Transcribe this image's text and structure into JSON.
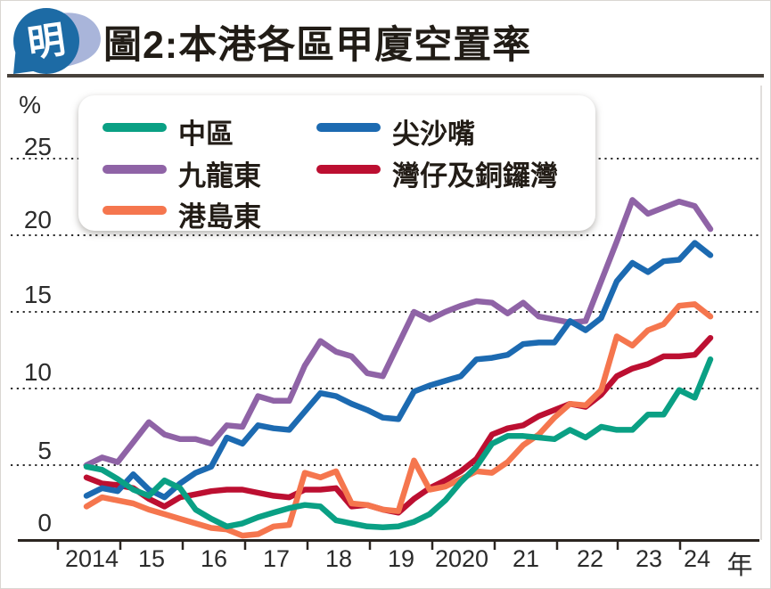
{
  "header": {
    "title": "圖2:本港各區甲廈空置率",
    "logo_char": "明"
  },
  "axis": {
    "y_unit_label": "%",
    "y_tick_labels": [
      "25",
      "20",
      "15",
      "10",
      "5",
      "0"
    ],
    "x_tick_labels": [
      "2014",
      "15",
      "16",
      "17",
      "18",
      "19",
      "2020",
      "21",
      "22",
      "23",
      "24"
    ],
    "x_axis_suffix": "年"
  },
  "chart_data": {
    "type": "line",
    "title": "本港各區甲廈空置率",
    "unit": "%",
    "frequency": "quarterly",
    "x_start": "2014Q2",
    "x_end": "2024Q2",
    "ylim": [
      0,
      27
    ],
    "y_gridlines": [
      5,
      10,
      15,
      20,
      25
    ],
    "grid_style": "dotted",
    "legend_position": "top-left",
    "x_quarters": [
      "2014Q2",
      "2014Q3",
      "2014Q4",
      "2015Q1",
      "2015Q2",
      "2015Q3",
      "2015Q4",
      "2016Q1",
      "2016Q2",
      "2016Q3",
      "2016Q4",
      "2017Q1",
      "2017Q2",
      "2017Q3",
      "2017Q4",
      "2018Q1",
      "2018Q2",
      "2018Q3",
      "2018Q4",
      "2019Q1",
      "2019Q2",
      "2019Q3",
      "2019Q4",
      "2020Q1",
      "2020Q2",
      "2020Q3",
      "2020Q4",
      "2021Q1",
      "2021Q2",
      "2021Q3",
      "2021Q4",
      "2022Q1",
      "2022Q2",
      "2022Q3",
      "2022Q4",
      "2023Q1",
      "2023Q2",
      "2023Q3",
      "2023Q4",
      "2024Q1",
      "2024Q2"
    ],
    "series": [
      {
        "name": "中區",
        "color": "#0aa084",
        "values": [
          4.9,
          4.7,
          4.1,
          3.4,
          3.0,
          4.0,
          3.5,
          2.1,
          1.5,
          1.0,
          1.2,
          1.6,
          1.9,
          2.2,
          2.4,
          2.3,
          1.4,
          1.2,
          1.0,
          0.95,
          1.0,
          1.3,
          1.8,
          2.7,
          3.9,
          4.9,
          6.4,
          6.9,
          6.9,
          6.8,
          6.7,
          7.3,
          6.8,
          7.5,
          7.3,
          7.3,
          8.3,
          8.3,
          9.9,
          9.4,
          11.9
        ]
      },
      {
        "name": "九龍東",
        "color": "#8f63a6",
        "values": [
          5.0,
          5.5,
          5.2,
          6.5,
          7.8,
          7.0,
          6.7,
          6.7,
          6.4,
          7.6,
          7.5,
          9.5,
          9.2,
          9.2,
          11.5,
          13.1,
          12.4,
          12.1,
          11.0,
          10.8,
          12.9,
          15.0,
          14.5,
          15.0,
          15.4,
          15.7,
          15.6,
          14.9,
          15.6,
          14.7,
          14.5,
          14.3,
          14.4,
          17.0,
          19.6,
          22.3,
          21.4,
          21.8,
          22.2,
          21.9,
          20.4
        ]
      },
      {
        "name": "港島東",
        "color": "#f5764e",
        "values": [
          2.3,
          2.9,
          2.7,
          2.5,
          2.1,
          1.8,
          1.5,
          1.2,
          0.9,
          0.8,
          0.4,
          0.5,
          1.0,
          1.1,
          4.5,
          4.2,
          4.6,
          2.5,
          2.4,
          2.1,
          2.0,
          5.3,
          3.4,
          3.6,
          4.1,
          4.6,
          4.5,
          5.2,
          6.3,
          7.0,
          8.1,
          9.0,
          8.9,
          9.9,
          13.4,
          12.8,
          13.8,
          14.2,
          15.4,
          15.5,
          14.7
        ]
      },
      {
        "name": "尖沙嘴",
        "color": "#1c6ab1",
        "values": [
          3.0,
          3.5,
          3.3,
          4.4,
          3.4,
          2.9,
          3.8,
          4.5,
          4.9,
          6.8,
          6.4,
          7.6,
          7.4,
          7.3,
          8.5,
          9.7,
          9.5,
          9.0,
          8.6,
          8.1,
          8.0,
          9.8,
          10.2,
          10.5,
          10.8,
          11.9,
          12.0,
          12.2,
          12.9,
          13.0,
          13.0,
          14.4,
          13.8,
          14.6,
          17.0,
          18.2,
          17.6,
          18.3,
          18.4,
          19.5,
          18.7
        ]
      },
      {
        "name": "灣仔及銅鑼灣",
        "color": "#bc0f31",
        "values": [
          4.2,
          3.8,
          3.7,
          3.5,
          2.8,
          2.3,
          2.9,
          3.1,
          3.3,
          3.4,
          3.4,
          3.2,
          3.0,
          2.9,
          3.4,
          3.4,
          3.5,
          2.3,
          2.4,
          2.1,
          1.9,
          2.8,
          3.5,
          4.0,
          4.6,
          5.4,
          7.0,
          7.4,
          7.6,
          8.2,
          8.6,
          9.0,
          8.8,
          9.6,
          10.8,
          11.3,
          11.6,
          12.1,
          12.1,
          12.2,
          13.3
        ]
      }
    ]
  }
}
